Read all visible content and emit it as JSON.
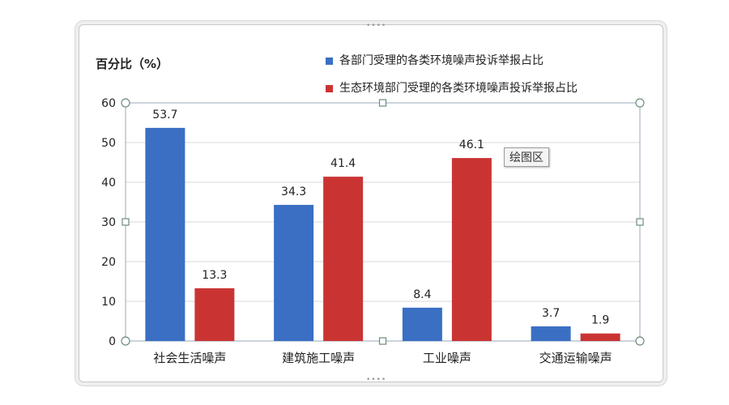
{
  "chart_data": {
    "type": "bar",
    "ylabel": "百分比（%）",
    "categories": [
      "社会生活噪声",
      "建筑施工噪声",
      "工业噪声",
      "交通运输噪声"
    ],
    "series": [
      {
        "name": "各部门受理的各类环境噪声投诉举报占比",
        "values": [
          53.7,
          34.3,
          8.4,
          3.7
        ],
        "color": "#3a6fc4"
      },
      {
        "name": "生态环境部门受理的各类环境噪声投诉举报占比",
        "values": [
          13.3,
          41.4,
          46.1,
          1.9
        ],
        "color": "#c93433"
      }
    ],
    "ylim": [
      0,
      60
    ],
    "yticks": [
      0,
      10,
      20,
      30,
      40,
      50,
      60
    ],
    "grid": true,
    "legend_position": "top-right"
  },
  "tooltip": "绘图区"
}
